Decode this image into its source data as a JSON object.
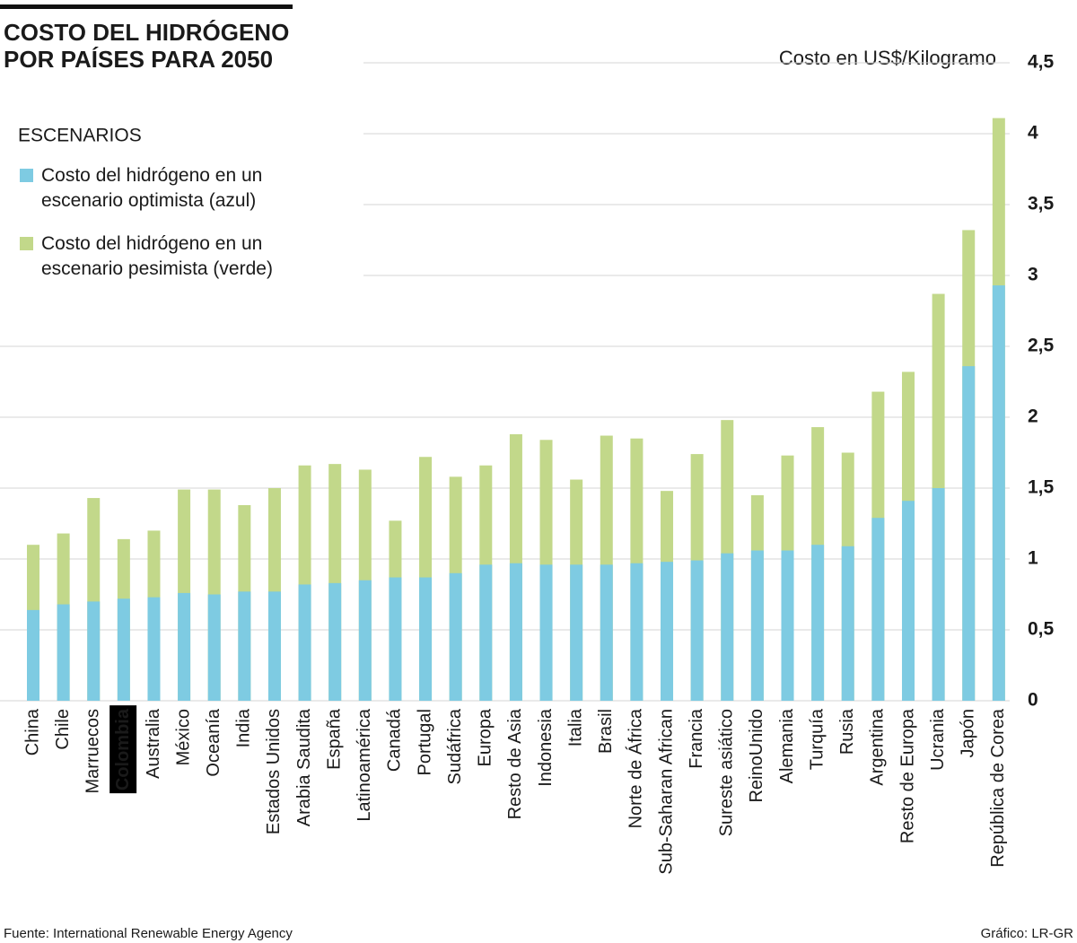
{
  "chart_data": {
    "type": "bar",
    "title": [
      "COSTO DEL HIDRÓGENO",
      "POR PAÍSES PARA 2050"
    ],
    "y_axis_label": "Costo en US$/Kilogramo",
    "legend_title": "ESCENARIOS",
    "source": "Fuente: International Renewable Energy Agency",
    "credit": "Gráfico: LR-GR",
    "categories": [
      "China",
      "Chile",
      "Marruecos",
      "Colombia",
      "Australia",
      "México",
      "Oceanía",
      "India",
      "Estados Unidos",
      "Arabia Saudita",
      "España",
      "Latinoamérica",
      "Canadá",
      "Portugal",
      "Sudáfrica",
      "Europa",
      "Resto de Asia",
      "Indonesia",
      "Italia",
      "Brasil",
      "Norte de África",
      "Sub-Saharan African",
      "Francia",
      "Sureste asiático",
      "ReinoUnido",
      "Alemania",
      "Turquía",
      "Rusia",
      "Argentina",
      "Resto de Europa",
      "Ucrania",
      "Japón",
      "República de Corea"
    ],
    "highlight_index": 3,
    "series": [
      {
        "name": "Costo del hidrógeno en un escenario optimista (azul)",
        "color": "#7ecbe2",
        "values": [
          0.64,
          0.68,
          0.7,
          0.72,
          0.73,
          0.76,
          0.75,
          0.77,
          0.77,
          0.82,
          0.83,
          0.85,
          0.87,
          0.87,
          0.9,
          0.96,
          0.97,
          0.96,
          0.96,
          0.96,
          0.97,
          0.98,
          0.99,
          1.04,
          1.06,
          1.06,
          1.1,
          1.09,
          1.29,
          1.41,
          1.5,
          2.36,
          2.93
        ]
      },
      {
        "name": "Costo del hidrógeno en un escenario pesimista (verde)",
        "color": "#c2d88a",
        "values": [
          1.1,
          1.18,
          1.43,
          1.14,
          1.2,
          1.49,
          1.49,
          1.38,
          1.5,
          1.66,
          1.67,
          1.63,
          1.27,
          1.72,
          1.58,
          1.66,
          1.88,
          1.84,
          1.56,
          1.87,
          1.85,
          1.48,
          1.74,
          1.98,
          1.45,
          1.73,
          1.93,
          1.75,
          2.18,
          2.32,
          2.87,
          3.32,
          4.11
        ]
      }
    ],
    "ylim": [
      0,
      4.5
    ],
    "yticks": [
      0,
      {
        "value": 0.5,
        "label": "0,5"
      },
      1,
      {
        "value": 1.5,
        "label": "1,5"
      },
      2,
      {
        "value": 2.5,
        "label": "2,5"
      },
      3,
      {
        "value": 3.5,
        "label": "3,5"
      },
      4,
      {
        "value": 4.5,
        "label": "4,5"
      }
    ],
    "grid": true
  }
}
